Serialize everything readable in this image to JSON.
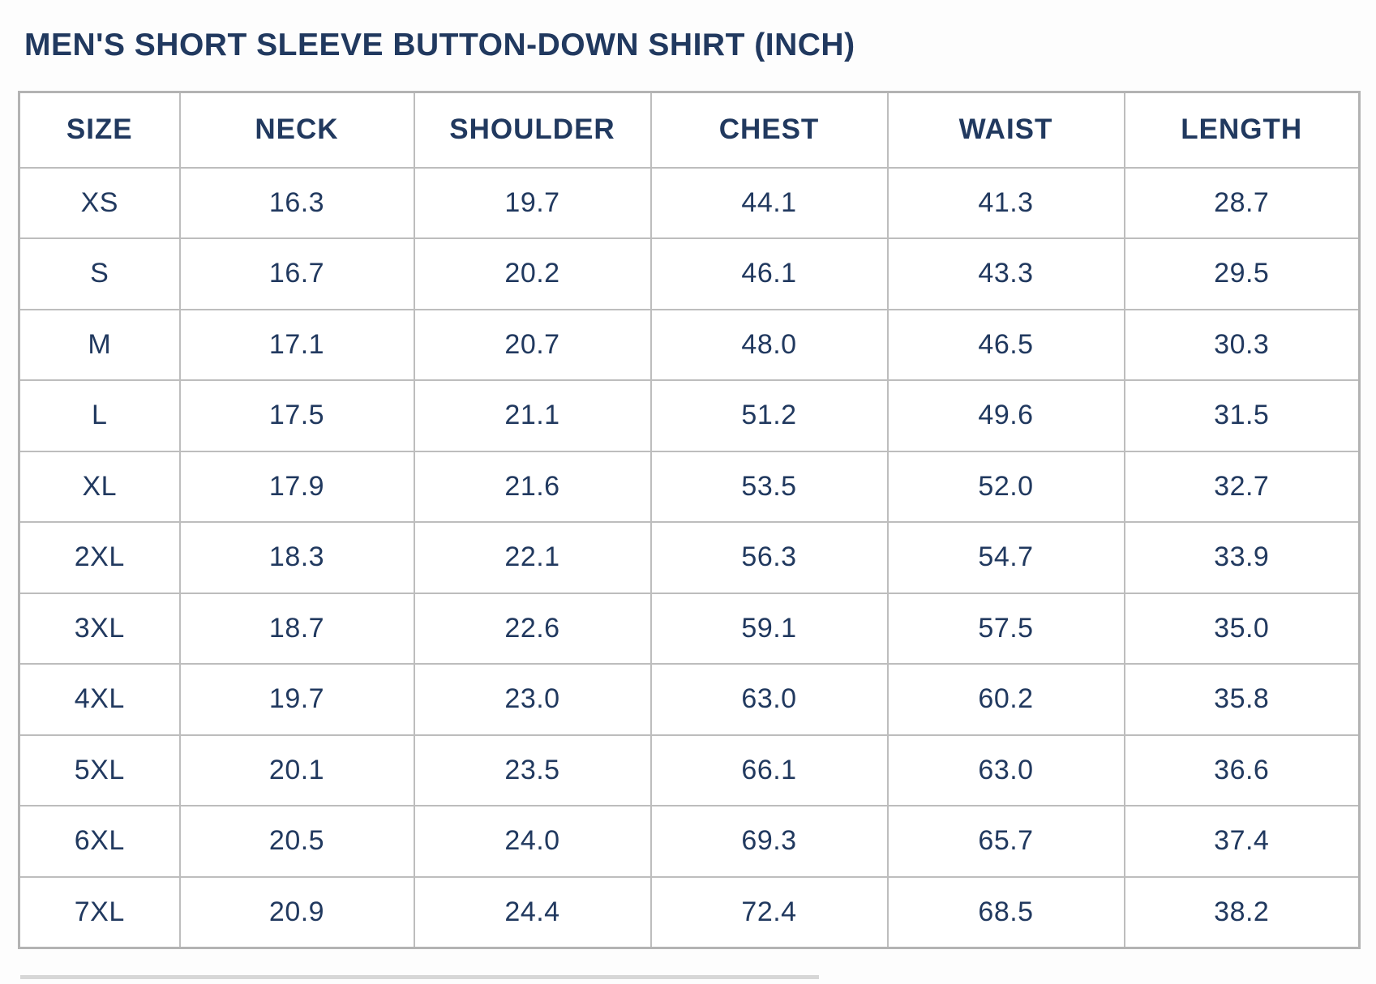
{
  "chart_data": {
    "type": "table",
    "title": "MEN'S SHORT SLEEVE BUTTON-DOWN SHIRT (INCH)",
    "columns": [
      "SIZE",
      "NECK",
      "SHOULDER",
      "CHEST",
      "WAIST",
      "LENGTH"
    ],
    "rows": [
      [
        "XS",
        "16.3",
        "19.7",
        "44.1",
        "41.3",
        "28.7"
      ],
      [
        "S",
        "16.7",
        "20.2",
        "46.1",
        "43.3",
        "29.5"
      ],
      [
        "M",
        "17.1",
        "20.7",
        "48.0",
        "46.5",
        "30.3"
      ],
      [
        "L",
        "17.5",
        "21.1",
        "51.2",
        "49.6",
        "31.5"
      ],
      [
        "XL",
        "17.9",
        "21.6",
        "53.5",
        "52.0",
        "32.7"
      ],
      [
        "2XL",
        "18.3",
        "22.1",
        "56.3",
        "54.7",
        "33.9"
      ],
      [
        "3XL",
        "18.7",
        "22.6",
        "59.1",
        "57.5",
        "35.0"
      ],
      [
        "4XL",
        "19.7",
        "23.0",
        "63.0",
        "60.2",
        "35.8"
      ],
      [
        "5XL",
        "20.1",
        "23.5",
        "66.1",
        "63.0",
        "36.6"
      ],
      [
        "6XL",
        "20.5",
        "24.0",
        "69.3",
        "65.7",
        "37.4"
      ],
      [
        "7XL",
        "20.9",
        "24.4",
        "72.4",
        "68.5",
        "38.2"
      ]
    ],
    "units": "inch",
    "layout_hints": {
      "header_row": true,
      "grid": true,
      "text_align": "center"
    }
  },
  "colors": {
    "text_navy": "#21395f",
    "grid_border": "#bdbdbd",
    "background": "#fdfdfd"
  }
}
